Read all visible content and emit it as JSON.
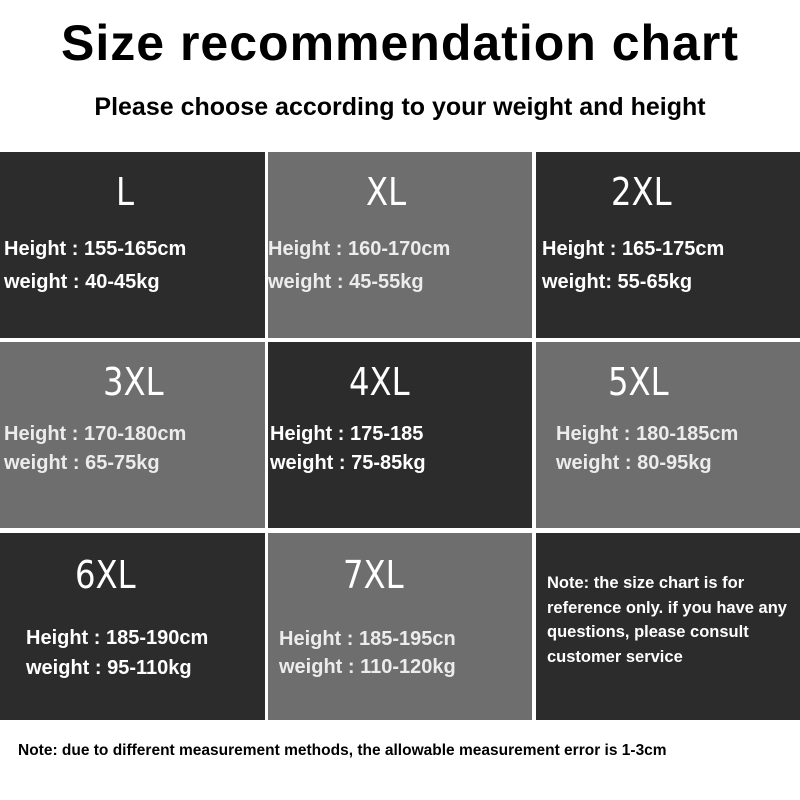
{
  "title": "Size recommendation chart",
  "subtitle": "Please choose according to your weight and height",
  "colors": {
    "dark_cell": "#2c2c2c",
    "gray_cell": "#6e6e6e"
  },
  "sizes": [
    {
      "label": "L",
      "height": "Height : 155-165cm",
      "weight": "weight : 40-45kg"
    },
    {
      "label": "XL",
      "height": "Height : 160-170cm",
      "weight": "weight : 45-55kg"
    },
    {
      "label": "2XL",
      "height": "Height : 165-175cm",
      "weight": "weight: 55-65kg"
    },
    {
      "label": "3XL",
      "height": "Height : 170-180cm",
      "weight": "weight : 65-75kg"
    },
    {
      "label": "4XL",
      "height": "Height : 175-185",
      "weight": "weight : 75-85kg"
    },
    {
      "label": "5XL",
      "height": "Height : 180-185cm",
      "weight": "weight : 80-95kg"
    },
    {
      "label": "6XL",
      "height": "Height : 185-190cm",
      "weight": "weight : 95-110kg"
    },
    {
      "label": "7XL",
      "height": "Height : 185-195cn",
      "weight": "weight : 110-120kg"
    }
  ],
  "cell_note": "Note: the size chart is for reference only. if you have any questions, please consult customer service",
  "footer_note": "Note: due to different measurement methods, the allowable measurement error is 1-3cm"
}
